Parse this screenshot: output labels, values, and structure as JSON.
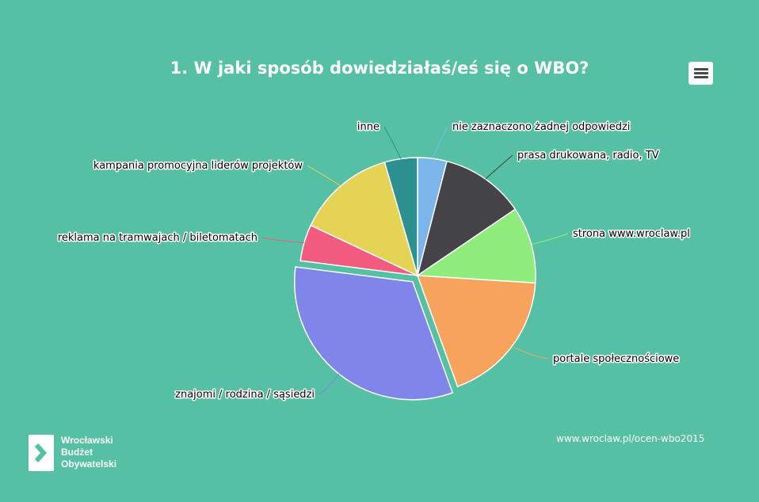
{
  "chart_data": {
    "type": "pie",
    "title": "1. W jaki sposób dowiedziałaś/eś się o WBO?",
    "slices": [
      {
        "label": "nie zaznaczono żadnej odpowiedzi",
        "value": 4.0,
        "color": "#7cb5ec"
      },
      {
        "label": "prasa drukowana, radio, TV",
        "value": 11.5,
        "color": "#434348"
      },
      {
        "label": "strona www.wroclaw.pl",
        "value": 10.5,
        "color": "#90ed7d"
      },
      {
        "label": "portale społecznościowe",
        "value": 18.5,
        "color": "#f7a35c"
      },
      {
        "label": "znajomi / rodzina / sąsiedzi",
        "value": 32.5,
        "color": "#8085e9"
      },
      {
        "label": "reklama na tramwajach / biletomatach",
        "value": 5.0,
        "color": "#f15c80"
      },
      {
        "label": "kampania promocyjna liderów projektów",
        "value": 13.5,
        "color": "#e4d354"
      },
      {
        "label": "inne",
        "value": 4.5,
        "color": "#2b908f"
      }
    ],
    "legend": "none"
  },
  "menu": {
    "icon": "hamburger-menu-icon"
  },
  "logo": {
    "line1": "Wrocławski",
    "line2": "Budżet",
    "line3": "Obywatelski"
  },
  "source_url": "www.wroclaw.pl/ocen-wbo2015"
}
